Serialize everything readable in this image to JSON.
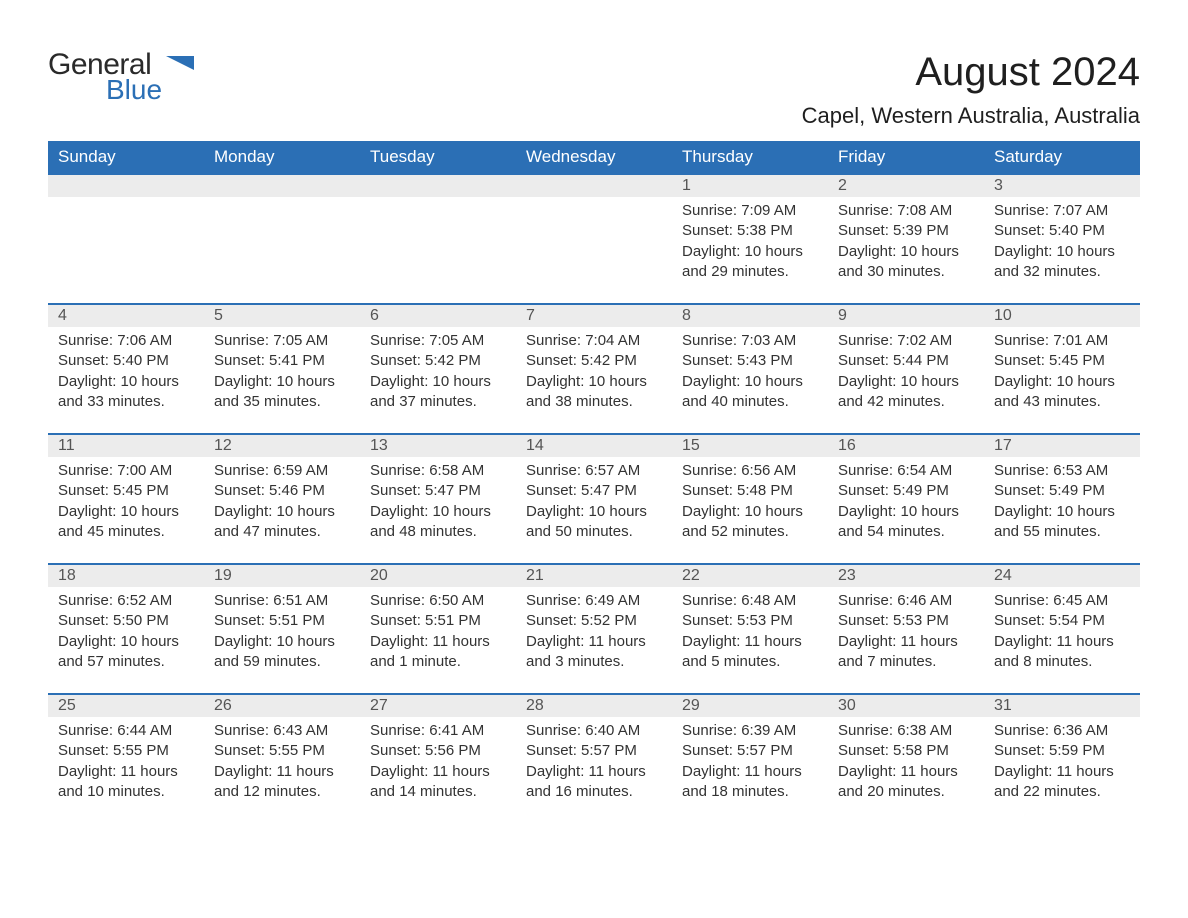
{
  "logo": {
    "line1": "General",
    "line2": "Blue",
    "accent_color": "#2b6fb5"
  },
  "title": "August 2024",
  "location": "Capel, Western Australia, Australia",
  "columns": [
    "Sunday",
    "Monday",
    "Tuesday",
    "Wednesday",
    "Thursday",
    "Friday",
    "Saturday"
  ],
  "colors": {
    "header_bg": "#2b6fb5",
    "header_text": "#ffffff",
    "daynum_bg": "#ececec",
    "daynum_border": "#2b6fb5",
    "body_text": "#333333",
    "page_bg": "#ffffff"
  },
  "weeks": [
    [
      null,
      null,
      null,
      null,
      {
        "n": "1",
        "sunrise": "7:09 AM",
        "sunset": "5:38 PM",
        "daylight": "10 hours and 29 minutes."
      },
      {
        "n": "2",
        "sunrise": "7:08 AM",
        "sunset": "5:39 PM",
        "daylight": "10 hours and 30 minutes."
      },
      {
        "n": "3",
        "sunrise": "7:07 AM",
        "sunset": "5:40 PM",
        "daylight": "10 hours and 32 minutes."
      }
    ],
    [
      {
        "n": "4",
        "sunrise": "7:06 AM",
        "sunset": "5:40 PM",
        "daylight": "10 hours and 33 minutes."
      },
      {
        "n": "5",
        "sunrise": "7:05 AM",
        "sunset": "5:41 PM",
        "daylight": "10 hours and 35 minutes."
      },
      {
        "n": "6",
        "sunrise": "7:05 AM",
        "sunset": "5:42 PM",
        "daylight": "10 hours and 37 minutes."
      },
      {
        "n": "7",
        "sunrise": "7:04 AM",
        "sunset": "5:42 PM",
        "daylight": "10 hours and 38 minutes."
      },
      {
        "n": "8",
        "sunrise": "7:03 AM",
        "sunset": "5:43 PM",
        "daylight": "10 hours and 40 minutes."
      },
      {
        "n": "9",
        "sunrise": "7:02 AM",
        "sunset": "5:44 PM",
        "daylight": "10 hours and 42 minutes."
      },
      {
        "n": "10",
        "sunrise": "7:01 AM",
        "sunset": "5:45 PM",
        "daylight": "10 hours and 43 minutes."
      }
    ],
    [
      {
        "n": "11",
        "sunrise": "7:00 AM",
        "sunset": "5:45 PM",
        "daylight": "10 hours and 45 minutes."
      },
      {
        "n": "12",
        "sunrise": "6:59 AM",
        "sunset": "5:46 PM",
        "daylight": "10 hours and 47 minutes."
      },
      {
        "n": "13",
        "sunrise": "6:58 AM",
        "sunset": "5:47 PM",
        "daylight": "10 hours and 48 minutes."
      },
      {
        "n": "14",
        "sunrise": "6:57 AM",
        "sunset": "5:47 PM",
        "daylight": "10 hours and 50 minutes."
      },
      {
        "n": "15",
        "sunrise": "6:56 AM",
        "sunset": "5:48 PM",
        "daylight": "10 hours and 52 minutes."
      },
      {
        "n": "16",
        "sunrise": "6:54 AM",
        "sunset": "5:49 PM",
        "daylight": "10 hours and 54 minutes."
      },
      {
        "n": "17",
        "sunrise": "6:53 AM",
        "sunset": "5:49 PM",
        "daylight": "10 hours and 55 minutes."
      }
    ],
    [
      {
        "n": "18",
        "sunrise": "6:52 AM",
        "sunset": "5:50 PM",
        "daylight": "10 hours and 57 minutes."
      },
      {
        "n": "19",
        "sunrise": "6:51 AM",
        "sunset": "5:51 PM",
        "daylight": "10 hours and 59 minutes."
      },
      {
        "n": "20",
        "sunrise": "6:50 AM",
        "sunset": "5:51 PM",
        "daylight": "11 hours and 1 minute."
      },
      {
        "n": "21",
        "sunrise": "6:49 AM",
        "sunset": "5:52 PM",
        "daylight": "11 hours and 3 minutes."
      },
      {
        "n": "22",
        "sunrise": "6:48 AM",
        "sunset": "5:53 PM",
        "daylight": "11 hours and 5 minutes."
      },
      {
        "n": "23",
        "sunrise": "6:46 AM",
        "sunset": "5:53 PM",
        "daylight": "11 hours and 7 minutes."
      },
      {
        "n": "24",
        "sunrise": "6:45 AM",
        "sunset": "5:54 PM",
        "daylight": "11 hours and 8 minutes."
      }
    ],
    [
      {
        "n": "25",
        "sunrise": "6:44 AM",
        "sunset": "5:55 PM",
        "daylight": "11 hours and 10 minutes."
      },
      {
        "n": "26",
        "sunrise": "6:43 AM",
        "sunset": "5:55 PM",
        "daylight": "11 hours and 12 minutes."
      },
      {
        "n": "27",
        "sunrise": "6:41 AM",
        "sunset": "5:56 PM",
        "daylight": "11 hours and 14 minutes."
      },
      {
        "n": "28",
        "sunrise": "6:40 AM",
        "sunset": "5:57 PM",
        "daylight": "11 hours and 16 minutes."
      },
      {
        "n": "29",
        "sunrise": "6:39 AM",
        "sunset": "5:57 PM",
        "daylight": "11 hours and 18 minutes."
      },
      {
        "n": "30",
        "sunrise": "6:38 AM",
        "sunset": "5:58 PM",
        "daylight": "11 hours and 20 minutes."
      },
      {
        "n": "31",
        "sunrise": "6:36 AM",
        "sunset": "5:59 PM",
        "daylight": "11 hours and 22 minutes."
      }
    ]
  ],
  "labels": {
    "sunrise": "Sunrise: ",
    "sunset": "Sunset: ",
    "daylight": "Daylight: "
  }
}
